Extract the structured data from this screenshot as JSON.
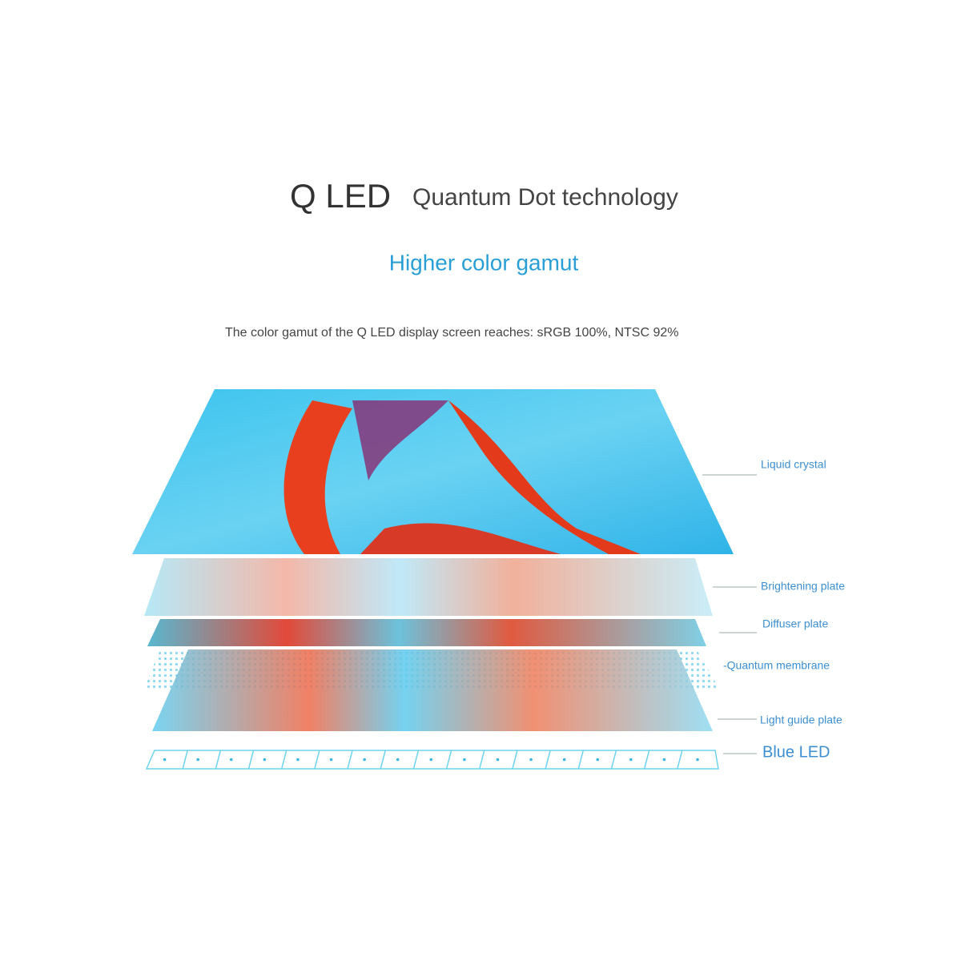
{
  "header": {
    "brand": "Q LED",
    "title": "Quantum Dot technology"
  },
  "heading": "Higher color gamut",
  "description": "The color gamut of the Q LED display screen reaches: sRGB 100%, NTSC 92%",
  "layers": [
    {
      "label": "Liquid crystal"
    },
    {
      "label": "Brightening plate"
    },
    {
      "label": "Diffuser plate"
    },
    {
      "label": "-Quantum membrane"
    },
    {
      "label": "Light guide plate"
    },
    {
      "label": "Blue LED"
    }
  ]
}
